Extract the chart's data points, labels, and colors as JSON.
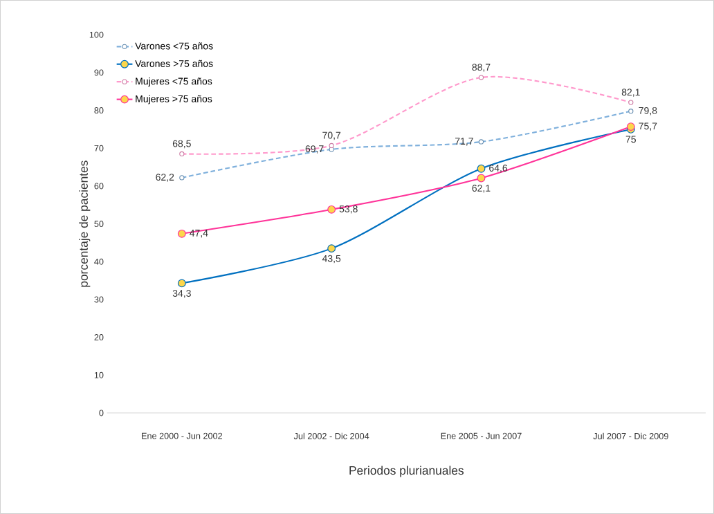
{
  "chart_data": {
    "type": "line",
    "xlabel": "Periodos plurianuales",
    "ylabel": "porcentaje de pacientes",
    "categories": [
      "Ene 2000 - Jun 2002",
      "Jul 2002 - Dic 2004",
      "Ene 2005 - Jun 2007",
      "Jul 2007 - Dic 2009"
    ],
    "series": [
      {
        "name": "Varones <75 años",
        "color": "#7fb0dc",
        "line_style": "dashed",
        "values": [
          62.2,
          69.7,
          71.7,
          79.8
        ],
        "value_labels": [
          "62,2",
          "69,7",
          "71,7",
          "79,8"
        ]
      },
      {
        "name": "Varones >75 años",
        "color": "#0070c0",
        "line_style": "solid",
        "values": [
          34.3,
          43.5,
          64.6,
          75
        ],
        "value_labels": [
          "34,3",
          "43,5",
          "64,6",
          "75"
        ]
      },
      {
        "name": "Mujeres <75 años",
        "color": "#ff99cc",
        "line_style": "dashed",
        "values": [
          68.5,
          70.7,
          88.7,
          82.1
        ],
        "value_labels": [
          "68,5",
          "70,7",
          "88,7",
          "82,1"
        ]
      },
      {
        "name": "Mujeres >75 años",
        "color": "#ff3399",
        "line_style": "solid",
        "values": [
          47.4,
          53.8,
          62.1,
          75.7
        ],
        "value_labels": [
          "47,4",
          "53,8",
          "62,1",
          "75,7"
        ]
      }
    ],
    "ylim": [
      0,
      100
    ],
    "yticks": [
      0,
      10,
      20,
      30,
      40,
      50,
      60,
      70,
      80,
      90,
      100
    ],
    "marker": "circle",
    "grid": false,
    "legend": "top left"
  }
}
